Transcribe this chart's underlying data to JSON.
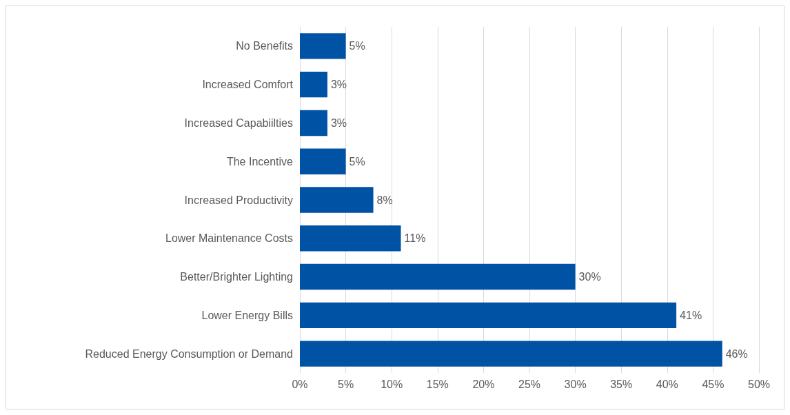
{
  "chart_data": {
    "type": "bar",
    "orientation": "horizontal",
    "categories": [
      "No Benefits",
      "Increased Comfort",
      "Increased Capabiilties",
      "The Incentive",
      "Increased Productivity",
      "Lower Maintenance Costs",
      "Better/Brighter Lighting",
      "Lower Energy Bills",
      "Reduced Energy Consumption or Demand"
    ],
    "values": [
      5,
      3,
      3,
      5,
      8,
      11,
      30,
      41,
      46
    ],
    "value_labels": [
      "5%",
      "3%",
      "3%",
      "5%",
      "8%",
      "11%",
      "30%",
      "41%",
      "46%"
    ],
    "color": "#0052a5",
    "xlim": [
      0,
      50
    ],
    "xticks": [
      {
        "value": 0,
        "label": "0%"
      },
      {
        "value": 5,
        "label": "5%"
      },
      {
        "value": 10,
        "label": "10%"
      },
      {
        "value": 15,
        "label": "15%"
      },
      {
        "value": 20,
        "label": "20%"
      },
      {
        "value": 25,
        "label": "25%"
      },
      {
        "value": 30,
        "label": "30%"
      },
      {
        "value": 35,
        "label": "35%"
      },
      {
        "value": 40,
        "label": "40%"
      },
      {
        "value": 45,
        "label": "45%"
      },
      {
        "value": 50,
        "label": "50%"
      }
    ],
    "grid": "x"
  }
}
